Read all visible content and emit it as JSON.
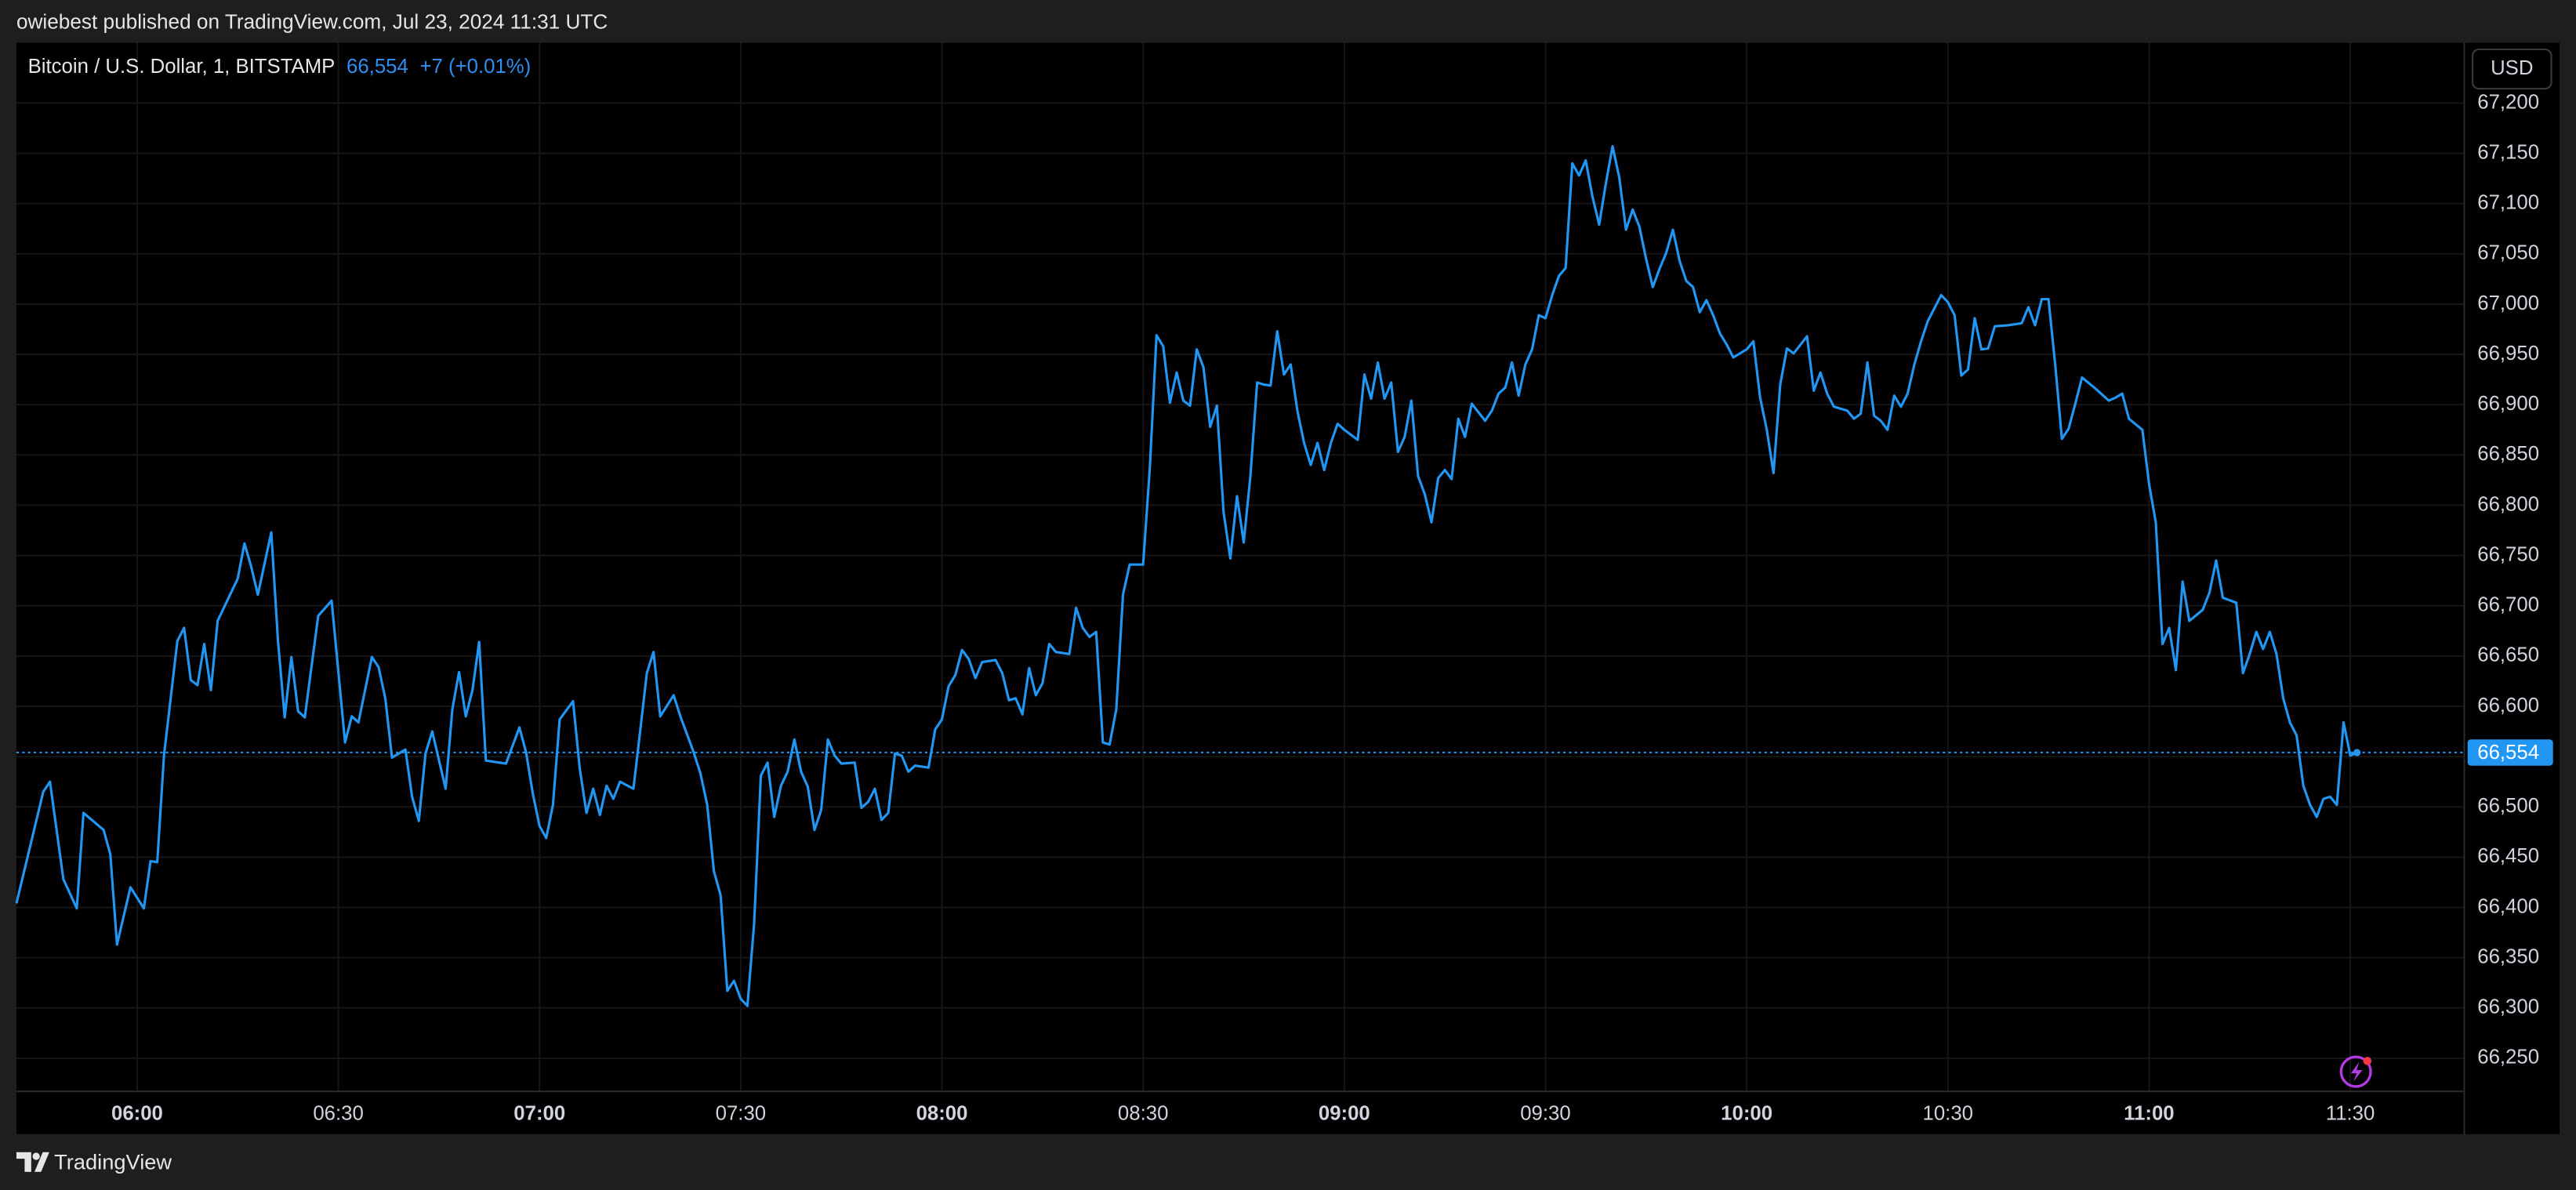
{
  "header": {
    "text": "owiebest published on TradingView.com, Jul 23, 2024 11:31 UTC"
  },
  "footer": {
    "brand": "TradingView"
  },
  "chart_data": {
    "type": "line",
    "title": "Bitcoin / U.S. Dollar, 1, BITSTAMP",
    "change": "+7 (+0.01%)",
    "currency": "USD",
    "color": "#2196f3",
    "grid": true,
    "price_line": {
      "value": 66554,
      "label": "66,554"
    },
    "xlim": [
      "05:42",
      "11:47"
    ],
    "xticks": [
      "06:00",
      "06:30",
      "07:00",
      "07:30",
      "08:00",
      "08:30",
      "09:00",
      "09:30",
      "10:00",
      "10:30",
      "11:00",
      "11:30"
    ],
    "ylim": [
      66217,
      67260
    ],
    "yticks": [
      {
        "value": 66250,
        "label": "66,250"
      },
      {
        "value": 66300,
        "label": "66,300"
      },
      {
        "value": 66350,
        "label": "66,350"
      },
      {
        "value": 66400,
        "label": "66,400"
      },
      {
        "value": 66450,
        "label": "66,450"
      },
      {
        "value": 66500,
        "label": "66,500"
      },
      {
        "value": 66550,
        "label": "66,550"
      },
      {
        "value": 66600,
        "label": "66,600"
      },
      {
        "value": 66650,
        "label": "66,650"
      },
      {
        "value": 66700,
        "label": "66,700"
      },
      {
        "value": 66750,
        "label": "66,750"
      },
      {
        "value": 66800,
        "label": "66,800"
      },
      {
        "value": 66850,
        "label": "66,850"
      },
      {
        "value": 66900,
        "label": "66,900"
      },
      {
        "value": 66950,
        "label": "66,950"
      },
      {
        "value": 67000,
        "label": "67,000"
      },
      {
        "value": 67050,
        "label": "67,050"
      },
      {
        "value": 67100,
        "label": "67,100"
      },
      {
        "value": 67150,
        "label": "67,150"
      },
      {
        "value": 67200,
        "label": "67,200"
      }
    ],
    "x": [
      "05:42",
      "05:46",
      "05:47",
      "05:49",
      "05:51",
      "05:52",
      "05:55",
      "05:56",
      "05:57",
      "05:59",
      "06:01",
      "06:02",
      "06:03",
      "06:04",
      "06:06",
      "06:07",
      "06:08",
      "06:09",
      "06:10",
      "06:11",
      "06:12",
      "06:15",
      "06:16",
      "06:17",
      "06:18",
      "06:20",
      "06:21",
      "06:22",
      "06:23",
      "06:24",
      "06:25",
      "06:27",
      "06:29",
      "06:31",
      "06:32",
      "06:33",
      "06:35",
      "06:36",
      "06:37",
      "06:38",
      "06:40",
      "06:41",
      "06:42",
      "06:43",
      "06:44",
      "06:46",
      "06:47",
      "06:48",
      "06:49",
      "06:50",
      "06:51",
      "06:52",
      "06:55",
      "06:57",
      "06:58",
      "06:59",
      "07:00",
      "07:01",
      "07:02",
      "07:03",
      "07:05",
      "07:06",
      "07:07",
      "07:08",
      "07:09",
      "07:10",
      "07:11",
      "07:12",
      "07:14",
      "07:15",
      "07:16",
      "07:17",
      "07:18",
      "07:20",
      "07:21",
      "07:23",
      "07:24",
      "07:25",
      "07:26",
      "07:27",
      "07:28",
      "07:29",
      "07:30",
      "07:31",
      "07:32",
      "07:33",
      "07:34",
      "07:35",
      "07:36",
      "07:37",
      "07:38",
      "07:39",
      "07:40",
      "07:41",
      "07:42",
      "07:43",
      "07:44",
      "07:45",
      "07:47",
      "07:48",
      "07:49",
      "07:50",
      "07:51",
      "07:52",
      "07:53",
      "07:54",
      "07:55",
      "07:56",
      "07:58",
      "07:59",
      "08:00",
      "08:01",
      "08:02",
      "08:03",
      "08:04",
      "08:05",
      "08:06",
      "08:08",
      "08:09",
      "08:10",
      "08:11",
      "08:12",
      "08:13",
      "08:14",
      "08:15",
      "08:16",
      "08:17",
      "08:19",
      "08:20",
      "08:21",
      "08:22",
      "08:23",
      "08:24",
      "08:25",
      "08:26",
      "08:27",
      "08:28",
      "08:30",
      "08:31",
      "08:32",
      "08:33",
      "08:34",
      "08:35",
      "08:36",
      "08:37",
      "08:38",
      "08:39",
      "08:40",
      "08:41",
      "08:42",
      "08:43",
      "08:44",
      "08:45",
      "08:46",
      "08:47",
      "08:48",
      "08:49",
      "08:50",
      "08:51",
      "08:52",
      "08:53",
      "08:54",
      "08:55",
      "08:56",
      "08:57",
      "08:58",
      "08:59",
      "09:00",
      "09:02",
      "09:03",
      "09:04",
      "09:05",
      "09:06",
      "09:07",
      "09:08",
      "09:09",
      "09:10",
      "09:11",
      "09:12",
      "09:13",
      "09:14",
      "09:15",
      "09:16",
      "09:17",
      "09:18",
      "09:19",
      "09:21",
      "09:22",
      "09:23",
      "09:24",
      "09:25",
      "09:26",
      "09:27",
      "09:28",
      "09:29",
      "09:30",
      "09:31",
      "09:32",
      "09:33",
      "09:34",
      "09:35",
      "09:36",
      "09:37",
      "09:38",
      "09:39",
      "09:40",
      "09:41",
      "09:42",
      "09:43",
      "09:44",
      "09:45",
      "09:46",
      "09:47",
      "09:48",
      "09:49",
      "09:50",
      "09:51",
      "09:52",
      "09:53",
      "09:54",
      "09:55",
      "09:56",
      "09:57",
      "09:58",
      "10:00",
      "10:01",
      "10:02",
      "10:03",
      "10:04",
      "10:05",
      "10:06",
      "10:07",
      "10:09",
      "10:10",
      "10:11",
      "10:12",
      "10:13",
      "10:15",
      "10:16",
      "10:17",
      "10:18",
      "10:19",
      "10:20",
      "10:21",
      "10:22",
      "10:23",
      "10:24",
      "10:25",
      "10:26",
      "10:27",
      "10:29",
      "10:30",
      "10:31",
      "10:32",
      "10:33",
      "10:34",
      "10:35",
      "10:36",
      "10:37",
      "10:39",
      "10:41",
      "10:42",
      "10:43",
      "10:44",
      "10:45",
      "10:46",
      "10:47",
      "10:48",
      "10:49",
      "10:50",
      "10:52",
      "10:54",
      "10:55",
      "10:56",
      "10:57",
      "10:59",
      "11:00",
      "11:01",
      "11:02",
      "11:03",
      "11:04",
      "11:05",
      "11:06",
      "11:08",
      "11:09",
      "11:10",
      "11:11",
      "11:13",
      "11:14",
      "11:15",
      "11:16",
      "11:17",
      "11:18",
      "11:19",
      "11:20",
      "11:21",
      "11:22",
      "11:23",
      "11:24",
      "11:25",
      "11:26",
      "11:27",
      "11:28",
      "11:29",
      "11:30",
      "11:31"
    ],
    "values": [
      66404,
      66515,
      66525,
      66428,
      66399,
      66494,
      66477,
      66453,
      66363,
      66420,
      66399,
      66446,
      66445,
      66551,
      66665,
      66678,
      66626,
      66621,
      66662,
      66616,
      66685,
      66727,
      66762,
      66739,
      66711,
      66773,
      66665,
      66589,
      66649,
      66595,
      66589,
      66690,
      66705,
      66564,
      66590,
      66584,
      66649,
      66639,
      66608,
      66549,
      66557,
      66510,
      66486,
      66553,
      66575,
      66518,
      66597,
      66634,
      66590,
      66616,
      66664,
      66546,
      66543,
      66579,
      66554,
      66513,
      66481,
      66469,
      66502,
      66587,
      66605,
      66538,
      66494,
      66518,
      66492,
      66521,
      66508,
      66525,
      66518,
      66575,
      66633,
      66654,
      66590,
      66611,
      66590,
      66554,
      66533,
      66502,
      66436,
      66412,
      66317,
      66327,
      66309,
      66302,
      66384,
      66531,
      66544,
      66490,
      66521,
      66535,
      66567,
      66535,
      66520,
      66477,
      66497,
      66567,
      66551,
      66543,
      66544,
      66499,
      66505,
      66518,
      66487,
      66494,
      66553,
      66551,
      66535,
      66541,
      66539,
      66577,
      66587,
      66620,
      66631,
      66656,
      66647,
      66628,
      66644,
      66646,
      66633,
      66606,
      66608,
      66592,
      66638,
      66611,
      66623,
      66662,
      66654,
      66652,
      66698,
      66678,
      66669,
      66674,
      66564,
      66562,
      66597,
      66711,
      66741,
      66741,
      66837,
      66969,
      66958,
      66902,
      66932,
      66904,
      66899,
      66955,
      66937,
      66878,
      66899,
      66793,
      66747,
      66809,
      66763,
      66829,
      66922,
      66920,
      66919,
      66973,
      66930,
      66940,
      66894,
      66862,
      66840,
      66862,
      66835,
      66862,
      66881,
      66875,
      66865,
      66930,
      66906,
      66942,
      66906,
      66922,
      66853,
      66868,
      66904,
      66829,
      66811,
      66783,
      66827,
      66835,
      66826,
      66886,
      66868,
      66901,
      66884,
      66894,
      66911,
      66917,
      66942,
      66909,
      66940,
      66955,
      66989,
      66986,
      67009,
      67028,
      67036,
      67140,
      67128,
      67143,
      67107,
      67079,
      67120,
      67157,
      67126,
      67074,
      67094,
      67077,
      67045,
      67017,
      67035,
      67051,
      67074,
      67043,
      67023,
      67017,
      66992,
      67004,
      66989,
      66971,
      66960,
      66947,
      66955,
      66963,
      66907,
      66875,
      66832,
      66920,
      66956,
      66951,
      66968,
      66914,
      66932,
      66911,
      66898,
      66894,
      66886,
      66891,
      66942,
      66889,
      66884,
      66875,
      66909,
      66898,
      66911,
      66940,
      66963,
      66983,
      67009,
      67002,
      66989,
      66929,
      66935,
      66986,
      66955,
      66956,
      66978,
      66979,
      66981,
      66997,
      66979,
      67005,
      67005,
      66940,
      66866,
      66876,
      66901,
      66927,
      66916,
      66904,
      66907,
      66911,
      66886,
      66875,
      66821,
      66783,
      66662,
      66678,
      66636,
      66724,
      66685,
      66696,
      66713,
      66745,
      66708,
      66703,
      66633,
      66652,
      66674,
      66657,
      66674,
      66652,
      66608,
      66584,
      66571,
      66521,
      66502,
      66490,
      66508,
      66510,
      66502,
      66584,
      66551,
      66554
    ]
  }
}
